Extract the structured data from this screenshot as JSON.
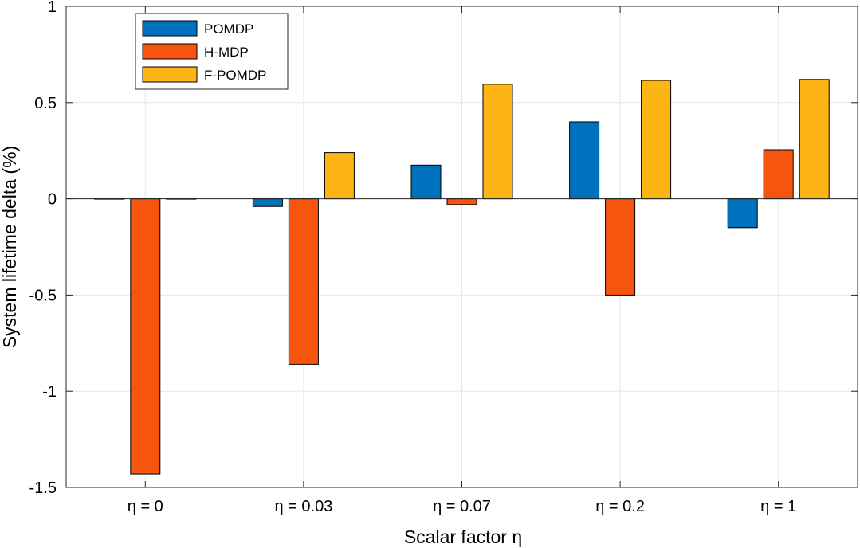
{
  "chart_data": {
    "type": "bar",
    "categories": [
      "η = 0",
      "η = 0.03",
      "η = 0.07",
      "η = 0.2",
      "η = 1"
    ],
    "series": [
      {
        "name": "POMDP",
        "color": "#0072BD",
        "values": [
          0,
          -0.04,
          0.175,
          0.4,
          -0.15
        ]
      },
      {
        "name": "H-MDP",
        "color": "#F6550F",
        "values": [
          -1.43,
          -0.86,
          -0.03,
          -0.5,
          0.255
        ]
      },
      {
        "name": "F-POMDP",
        "color": "#FDB515",
        "values": [
          0,
          0.24,
          0.595,
          0.615,
          0.62
        ]
      }
    ],
    "xlabel": "Scalar factor η",
    "ylabel": "System lifetime delta (%)",
    "ylim": [
      -1.5,
      1
    ],
    "yticks": [
      1,
      0.5,
      0,
      -0.5,
      -1,
      -1.5
    ],
    "ytick_labels": [
      "1",
      "0.5",
      "0",
      "-0.5",
      "-1",
      "-1.5"
    ],
    "grid": true,
    "legend_position": "top-left"
  }
}
